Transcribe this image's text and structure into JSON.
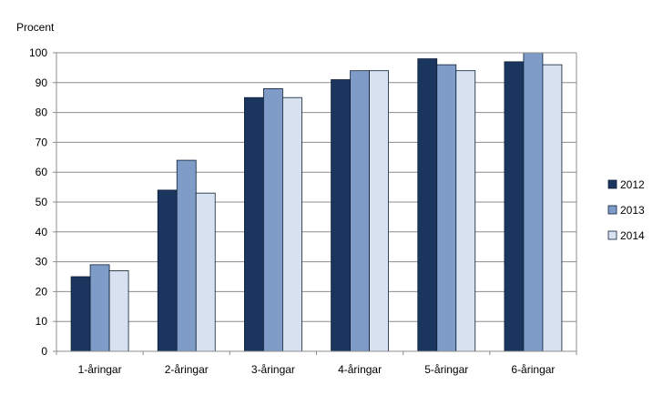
{
  "chart_data": {
    "type": "bar",
    "ylabel": "Procent",
    "xlabel": "",
    "title": "",
    "ylim": [
      0,
      100
    ],
    "yticks": [
      0,
      10,
      20,
      30,
      40,
      50,
      60,
      70,
      80,
      90,
      100
    ],
    "grid": true,
    "legend_position": "right",
    "categories": [
      "1-åringar",
      "2-åringar",
      "3-åringar",
      "4-åringar",
      "5-åringar",
      "6-åringar"
    ],
    "series": [
      {
        "name": "2012",
        "color": "#1b365e",
        "values": [
          25,
          54,
          85,
          91,
          98,
          97
        ]
      },
      {
        "name": "2013",
        "color": "#7f9cc8",
        "values": [
          29,
          64,
          88,
          94,
          96,
          100
        ]
      },
      {
        "name": "2014",
        "color": "#d7e1f0",
        "values": [
          27,
          53,
          85,
          94,
          94,
          96
        ]
      }
    ]
  }
}
